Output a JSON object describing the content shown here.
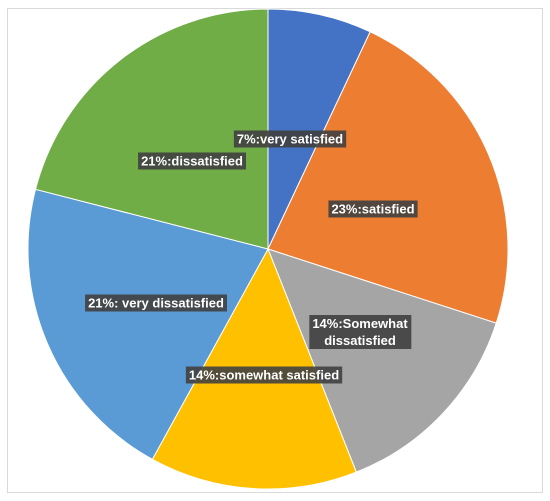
{
  "chart_data": {
    "type": "pie",
    "start_angle": "top, clockwise",
    "slices": [
      {
        "category": "very satisfied",
        "value": 7,
        "label": "7%:very satisfied",
        "color": "#4472C4"
      },
      {
        "category": "satisfied",
        "value": 23,
        "label": "23%:satisfied",
        "color": "#ED7D31"
      },
      {
        "category": "Somewhat dissatisfied",
        "value": 14,
        "label": "14%:Somewhat dissatisfied",
        "color": "#A5A5A5"
      },
      {
        "category": "somewhat satisfied",
        "value": 14,
        "label": "14%:somewhat satisfied",
        "color": "#FFC000"
      },
      {
        "category": "very dissatisfied",
        "value": 21,
        "label": "21%: very dissatisfied",
        "color": "#5B9BD5"
      },
      {
        "category": "dissatisfied",
        "value": 21,
        "label": "21%:dissatisfied",
        "color": "#70AD47"
      }
    ]
  }
}
